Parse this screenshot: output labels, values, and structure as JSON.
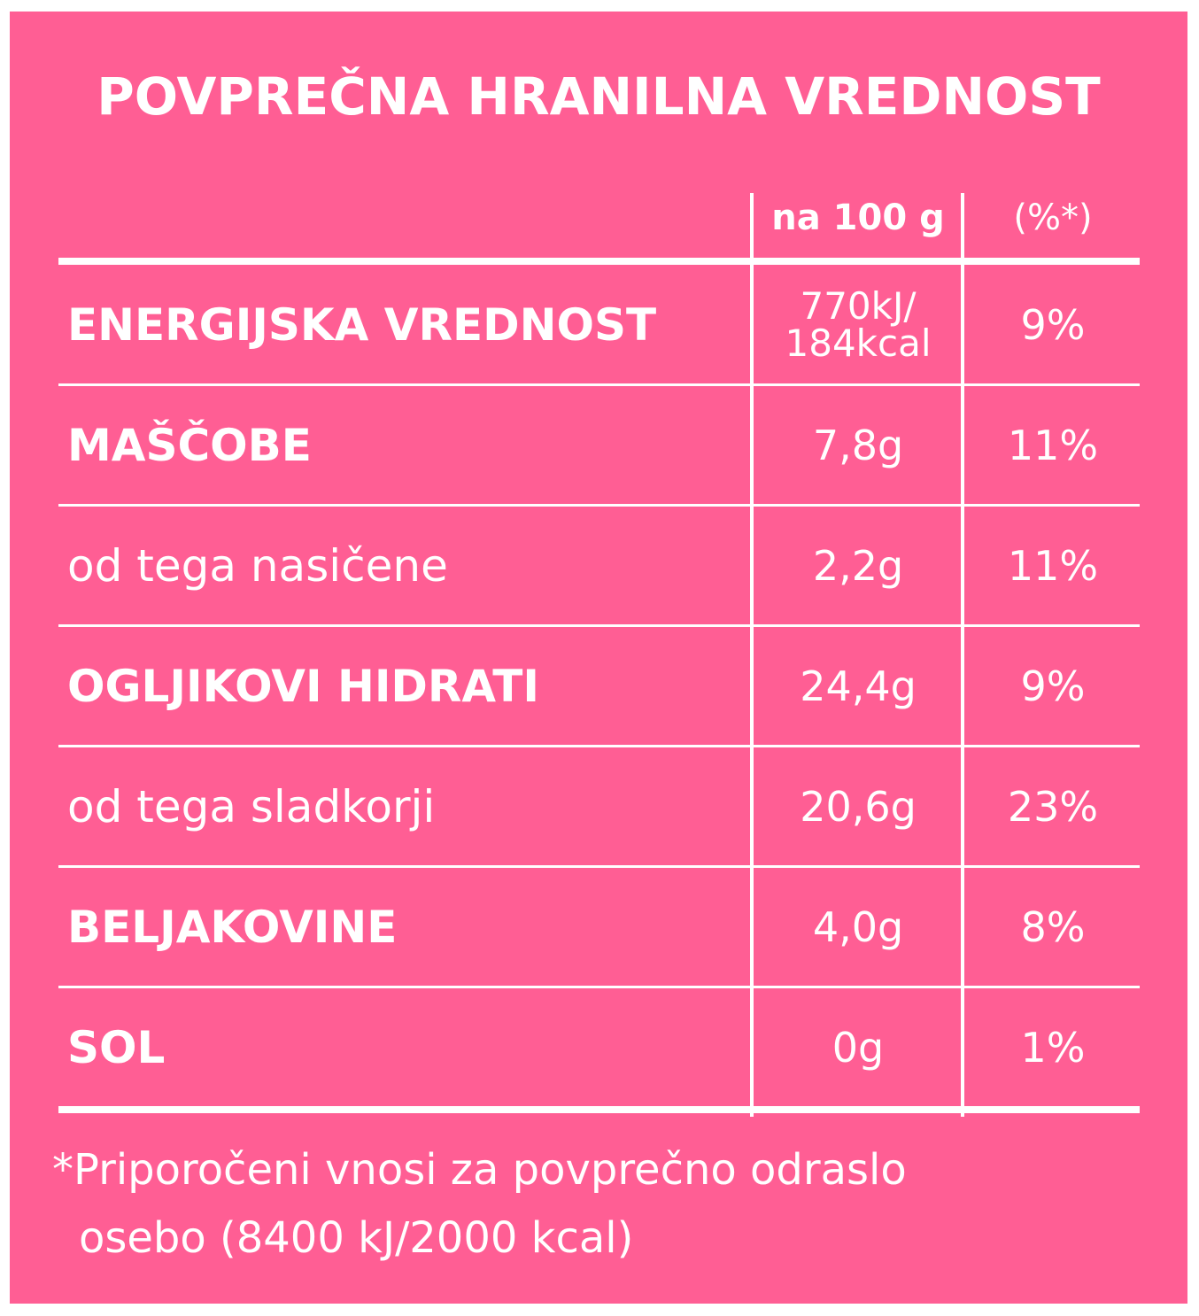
{
  "title": "POVPREČNA HRANILNA VREDNOST",
  "colors": {
    "background": "#FF5E94",
    "text": "#FFFFFF"
  },
  "header": {
    "per_100g": "na 100 g",
    "percent": "(%*)"
  },
  "rows": [
    {
      "label": "ENERGIJSKA VREDNOST",
      "bold": true,
      "value_line1": "770kJ/",
      "value_line2": "184kcal",
      "percent": "9%"
    },
    {
      "label": "MAŠČOBE",
      "bold": true,
      "value": "7,8g",
      "percent": "11%"
    },
    {
      "label": "od tega nasičene",
      "bold": false,
      "value": "2,2g",
      "percent": "11%"
    },
    {
      "label": "OGLJIKOVI HIDRATI",
      "bold": true,
      "value": "24,4g",
      "percent": "9%"
    },
    {
      "label": "od tega sladkorji",
      "bold": false,
      "value": "20,6g",
      "percent": "23%"
    },
    {
      "label": "BELJAKOVINE",
      "bold": true,
      "value": "4,0g",
      "percent": "8%"
    },
    {
      "label": "SOL",
      "bold": true,
      "value": "0g",
      "percent": "1%"
    }
  ],
  "footnote": {
    "line1": "*Priporočeni vnosi za povprečno odraslo",
    "line2": "osebo (8400 kJ/2000 kcal)"
  }
}
